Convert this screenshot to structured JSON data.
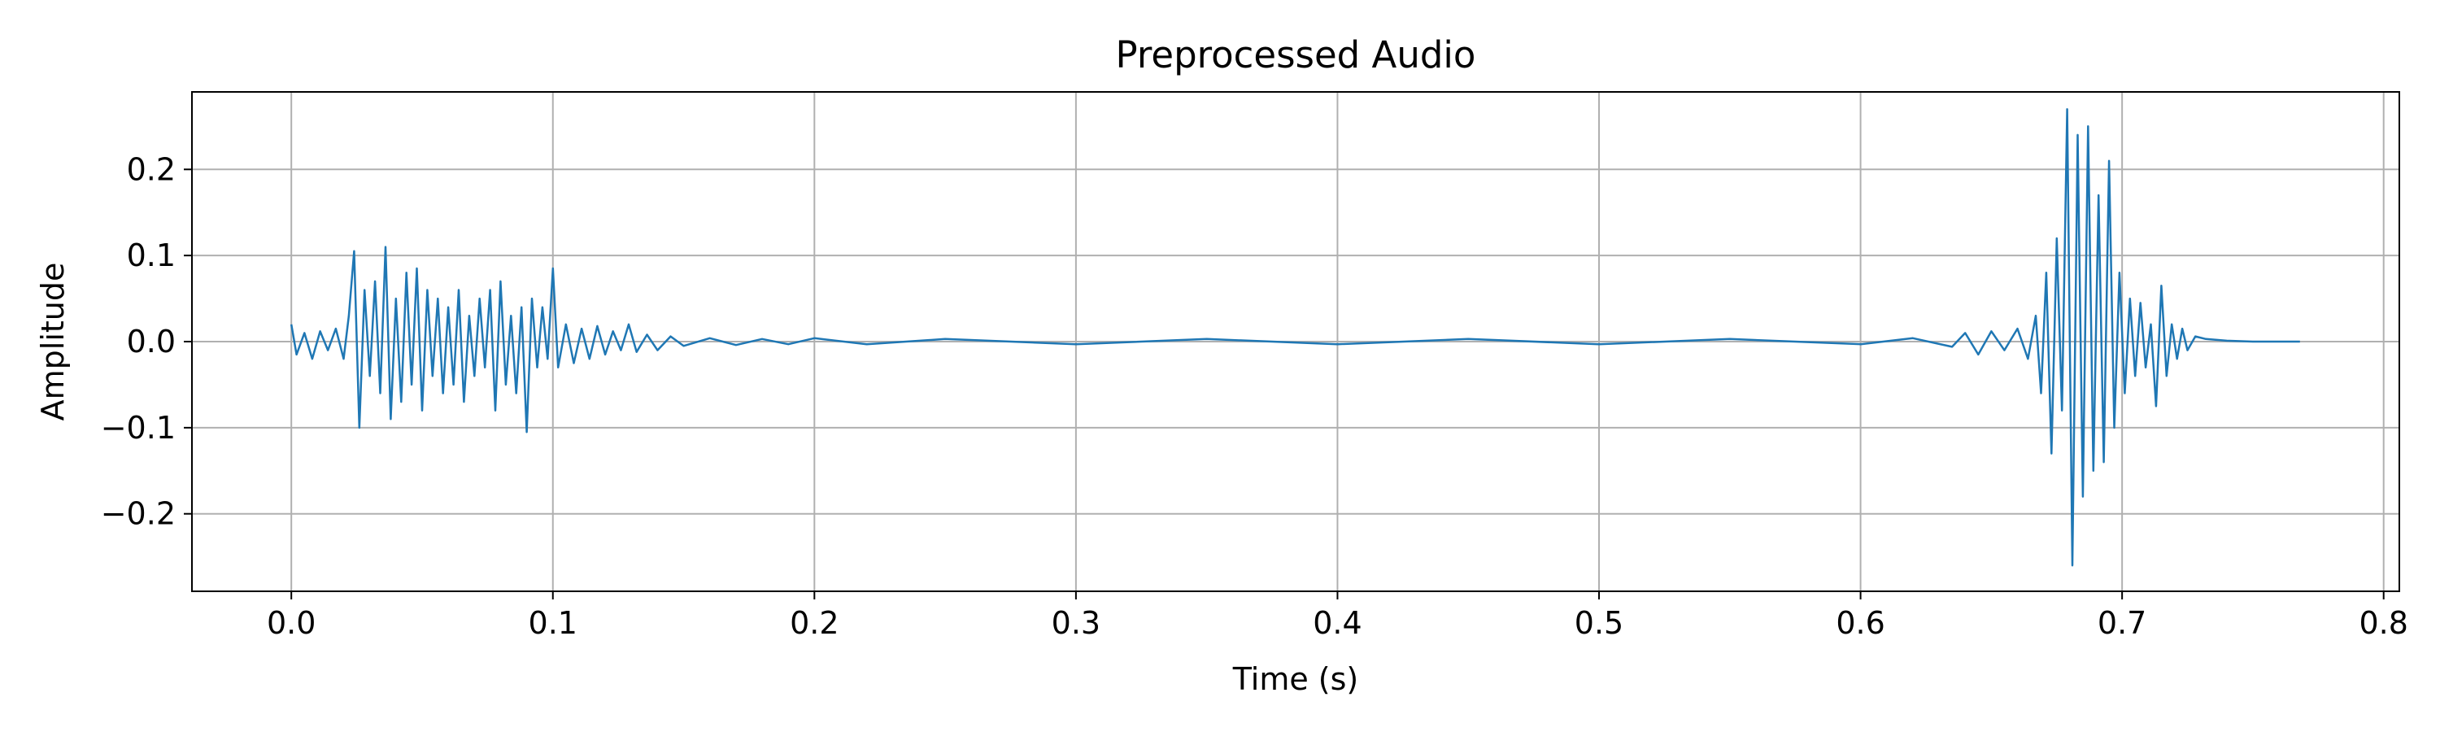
{
  "chart_data": {
    "type": "line",
    "title": "Preprocessed Audio",
    "xlabel": "Time (s)",
    "ylabel": "Amplitude",
    "xlim": [
      -0.038,
      0.806
    ],
    "ylim": [
      -0.29,
      0.29
    ],
    "xticks": [
      0.0,
      0.1,
      0.2,
      0.3,
      0.4,
      0.5,
      0.6,
      0.7,
      0.8
    ],
    "xtick_labels": [
      "0.0",
      "0.1",
      "0.2",
      "0.3",
      "0.4",
      "0.5",
      "0.6",
      "0.7",
      "0.8"
    ],
    "yticks": [
      -0.2,
      -0.1,
      0.0,
      0.1,
      0.2
    ],
    "ytick_labels": [
      "−0.2",
      "−0.1",
      "0.0",
      "0.1",
      "0.2"
    ],
    "grid": true,
    "legend": "none",
    "line_color": "#1f77b4",
    "grid_color": "#b0b0b0",
    "series": [
      {
        "x": [
          0.0,
          0.002,
          0.005,
          0.008,
          0.011,
          0.014,
          0.017,
          0.02,
          0.022,
          0.024,
          0.026,
          0.028,
          0.03,
          0.032,
          0.034,
          0.036,
          0.038,
          0.04,
          0.042,
          0.044,
          0.046,
          0.048,
          0.05,
          0.052,
          0.054,
          0.056,
          0.058,
          0.06,
          0.062,
          0.064,
          0.066,
          0.068,
          0.07,
          0.072,
          0.074,
          0.076,
          0.078,
          0.08,
          0.082,
          0.084,
          0.086,
          0.088,
          0.09,
          0.092,
          0.094,
          0.096,
          0.098,
          0.1,
          0.102,
          0.105,
          0.108,
          0.111,
          0.114,
          0.117,
          0.12,
          0.123,
          0.126,
          0.129,
          0.132,
          0.136,
          0.14,
          0.145,
          0.15,
          0.16,
          0.17,
          0.18,
          0.19,
          0.2,
          0.22,
          0.25,
          0.3,
          0.35,
          0.4,
          0.45,
          0.5,
          0.55,
          0.6,
          0.62,
          0.635,
          0.64,
          0.645,
          0.65,
          0.655,
          0.66,
          0.664,
          0.667,
          0.669,
          0.671,
          0.673,
          0.675,
          0.677,
          0.679,
          0.681,
          0.683,
          0.685,
          0.687,
          0.689,
          0.691,
          0.693,
          0.695,
          0.697,
          0.699,
          0.701,
          0.703,
          0.705,
          0.707,
          0.709,
          0.711,
          0.713,
          0.715,
          0.717,
          0.719,
          0.721,
          0.723,
          0.725,
          0.728,
          0.732,
          0.74,
          0.75,
          0.76,
          0.768
        ],
        "y": [
          0.02,
          -0.015,
          0.01,
          -0.02,
          0.012,
          -0.01,
          0.015,
          -0.02,
          0.03,
          0.105,
          -0.1,
          0.06,
          -0.04,
          0.07,
          -0.06,
          0.11,
          -0.09,
          0.05,
          -0.07,
          0.08,
          -0.05,
          0.085,
          -0.08,
          0.06,
          -0.04,
          0.05,
          -0.06,
          0.04,
          -0.05,
          0.06,
          -0.07,
          0.03,
          -0.04,
          0.05,
          -0.03,
          0.06,
          -0.08,
          0.07,
          -0.05,
          0.03,
          -0.06,
          0.04,
          -0.105,
          0.05,
          -0.03,
          0.04,
          -0.02,
          0.085,
          -0.03,
          0.02,
          -0.025,
          0.015,
          -0.02,
          0.018,
          -0.015,
          0.012,
          -0.01,
          0.02,
          -0.012,
          0.008,
          -0.01,
          0.006,
          -0.005,
          0.004,
          -0.004,
          0.003,
          -0.003,
          0.004,
          -0.003,
          0.003,
          -0.003,
          0.003,
          -0.003,
          0.003,
          -0.003,
          0.003,
          -0.003,
          0.004,
          -0.006,
          0.01,
          -0.015,
          0.012,
          -0.01,
          0.015,
          -0.02,
          0.03,
          -0.06,
          0.08,
          -0.13,
          0.12,
          -0.08,
          0.27,
          -0.26,
          0.24,
          -0.18,
          0.25,
          -0.15,
          0.17,
          -0.14,
          0.21,
          -0.1,
          0.08,
          -0.06,
          0.05,
          -0.04,
          0.045,
          -0.03,
          0.02,
          -0.075,
          0.065,
          -0.04,
          0.02,
          -0.02,
          0.015,
          -0.01,
          0.006,
          0.003,
          0.001,
          0.0,
          0.0,
          0.0
        ]
      }
    ]
  }
}
